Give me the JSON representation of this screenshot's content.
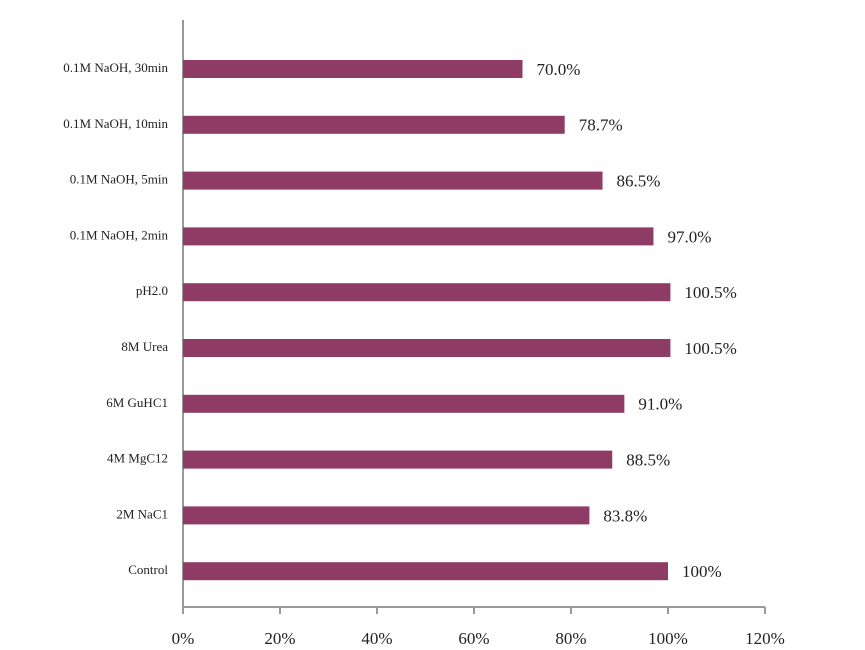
{
  "chart_data": {
    "type": "bar",
    "orientation": "horizontal",
    "categories": [
      "0.1M NaOH, 30min",
      "0.1M NaOH, 10min",
      "0.1M NaOH, 5min",
      "0.1M NaOH, 2min",
      "pH2.0",
      "8M Urea",
      "6M GuHC1",
      "4M MgC12",
      "2M NaC1",
      "Control"
    ],
    "values": [
      70.0,
      78.7,
      86.5,
      97.0,
      100.5,
      100.5,
      91.0,
      88.5,
      83.8,
      100
    ],
    "value_labels": [
      "70.0%",
      "78.7%",
      "86.5%",
      "97.0%",
      "100.5%",
      "100.5%",
      "91.0%",
      "88.5%",
      "83.8%",
      "100%"
    ],
    "color": "#8e3b66",
    "xlim": [
      0,
      120
    ],
    "xticks": [
      {
        "value": 0,
        "label": "0%"
      },
      {
        "value": 20,
        "label": "20%"
      },
      {
        "value": 40,
        "label": "40%"
      },
      {
        "value": 60,
        "label": "60%"
      },
      {
        "value": 80,
        "label": "80%"
      },
      {
        "value": 100,
        "label": "100%"
      },
      {
        "value": 120,
        "label": "120%"
      }
    ],
    "grid": false
  }
}
